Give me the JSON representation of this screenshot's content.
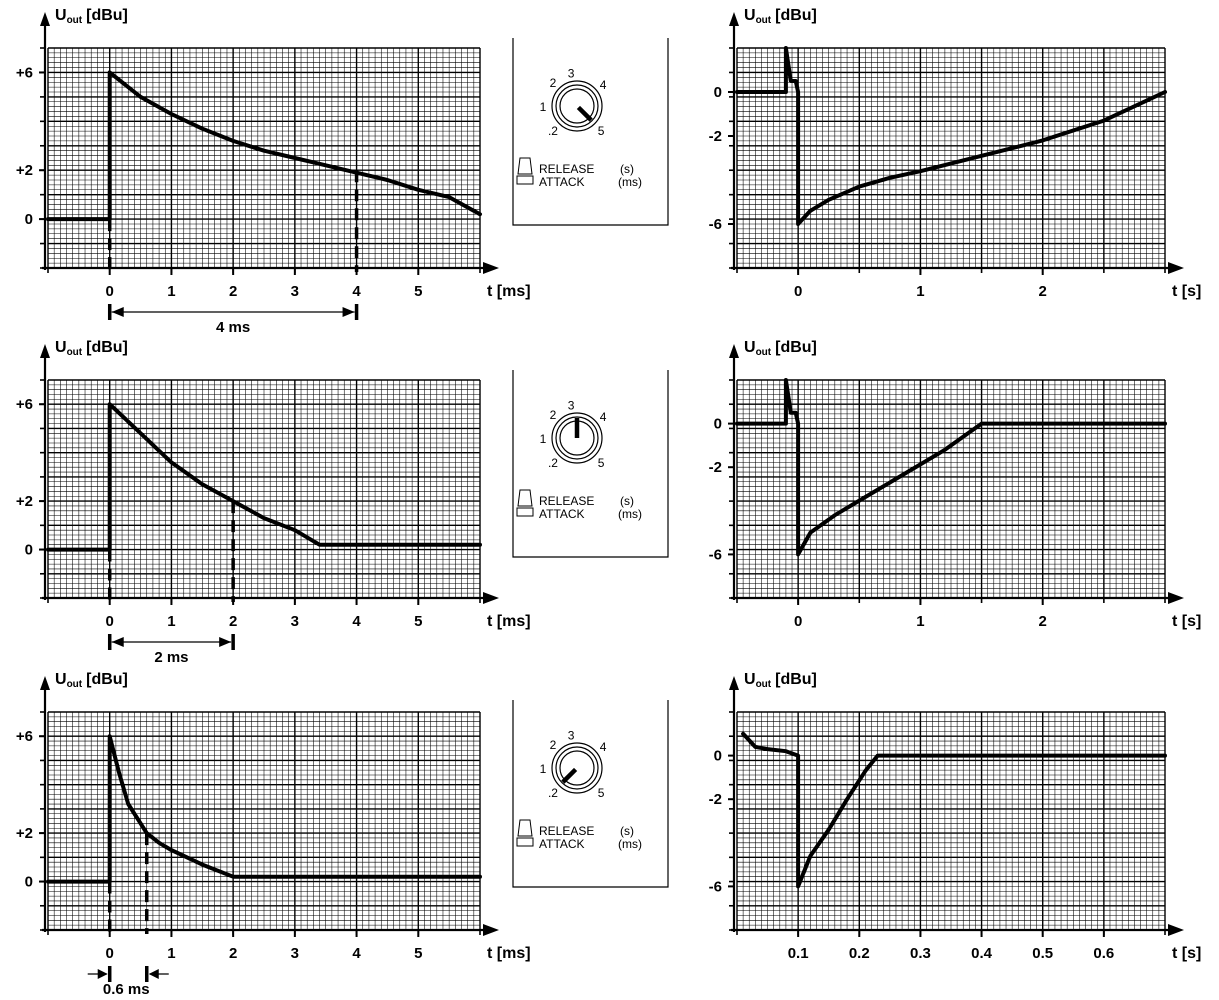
{
  "axis_label_u": "U",
  "axis_label_u_sub": "out",
  "axis_label_u_unit": "[dBu]",
  "knob_labels": {
    "scale": [
      ".2",
      "1",
      "2",
      "3",
      "4",
      "5"
    ],
    "release": "RELEASE",
    "release_unit": "(s)",
    "attack": "ATTACK",
    "attack_unit": "(ms)"
  },
  "colors": {
    "ink": "#000000",
    "grid": "#000000",
    "paper": "#ffffff"
  },
  "chart_data": [
    {
      "type": "line",
      "panel": "left-top",
      "x_unit_label": "t [ms]",
      "xlim": [
        -1,
        6
      ],
      "ylim": [
        -2,
        7
      ],
      "x_ticks": [
        "0",
        "1",
        "2",
        "3",
        "4",
        "5"
      ],
      "y_ticks": [
        "+6",
        "+2",
        "0"
      ],
      "grid": true,
      "series": [
        {
          "x": [
            -1,
            0,
            0,
            0.5,
            1,
            1.5,
            2,
            2.5,
            3,
            3.5,
            4,
            4.5,
            5,
            5.5,
            6
          ],
          "y": [
            0,
            0,
            6,
            5.0,
            4.3,
            3.7,
            3.2,
            2.8,
            2.5,
            2.2,
            1.9,
            1.6,
            1.2,
            0.9,
            0.2
          ]
        }
      ],
      "marker_x": 4,
      "marker_y": 2,
      "annotation": "4 ms"
    },
    {
      "type": "line",
      "panel": "right-top",
      "x_unit_label": "t [s]",
      "xlim": [
        -0.5,
        3
      ],
      "ylim": [
        -8,
        2
      ],
      "x_ticks": [
        "0",
        "1",
        "2"
      ],
      "y_ticks": [
        "0",
        "-2",
        "-6"
      ],
      "grid": true,
      "series": [
        {
          "x": [
            -0.5,
            -0.1,
            -0.1,
            -0.06,
            -0.02,
            0,
            0,
            0.1,
            0.25,
            0.5,
            0.75,
            1,
            1.5,
            2,
            2.5,
            3
          ],
          "y": [
            0,
            0,
            2,
            0.5,
            0.5,
            0,
            -6,
            -5.4,
            -4.9,
            -4.3,
            -3.9,
            -3.6,
            -2.9,
            -2.2,
            -1.3,
            0
          ]
        }
      ]
    },
    {
      "type": "line",
      "panel": "left-middle",
      "x_unit_label": "t [ms]",
      "xlim": [
        -1,
        6
      ],
      "ylim": [
        -2,
        7
      ],
      "x_ticks": [
        "0",
        "1",
        "2",
        "3",
        "4",
        "5"
      ],
      "y_ticks": [
        "+6",
        "+2",
        "0"
      ],
      "grid": true,
      "series": [
        {
          "x": [
            -1,
            0,
            0,
            0.5,
            1,
            1.5,
            2,
            2.5,
            3,
            3.4,
            4,
            5,
            6
          ],
          "y": [
            0,
            0,
            6,
            4.8,
            3.6,
            2.7,
            2.0,
            1.3,
            0.8,
            0.2,
            0.2,
            0.2,
            0.2
          ]
        }
      ],
      "marker_x": 2,
      "marker_y": 2,
      "annotation": "2 ms"
    },
    {
      "type": "line",
      "panel": "right-middle",
      "x_unit_label": "t [s]",
      "xlim": [
        -0.5,
        3
      ],
      "ylim": [
        -8,
        2
      ],
      "x_ticks": [
        "0",
        "1",
        "2"
      ],
      "y_ticks": [
        "0",
        "-2",
        "-6"
      ],
      "grid": true,
      "series": [
        {
          "x": [
            -0.5,
            -0.1,
            -0.1,
            -0.06,
            -0.02,
            0,
            0,
            0.1,
            0.3,
            0.6,
            0.9,
            1.2,
            1.5,
            2,
            2.5,
            3
          ],
          "y": [
            0,
            0,
            2,
            0.5,
            0.5,
            0,
            -6,
            -5.0,
            -4.2,
            -3.2,
            -2.2,
            -1.2,
            0,
            0,
            0,
            0
          ]
        }
      ]
    },
    {
      "type": "line",
      "panel": "left-bottom",
      "x_unit_label": "t [ms]",
      "xlim": [
        -1,
        6
      ],
      "ylim": [
        -2,
        7
      ],
      "x_ticks": [
        "0",
        "1",
        "2",
        "3",
        "4",
        "5"
      ],
      "y_ticks": [
        "+6",
        "+2",
        "0"
      ],
      "grid": true,
      "series": [
        {
          "x": [
            -1,
            0,
            0,
            0.15,
            0.3,
            0.45,
            0.6,
            0.8,
            1,
            1.5,
            2,
            3,
            4,
            5,
            6
          ],
          "y": [
            0,
            0,
            6,
            4.5,
            3.2,
            2.6,
            2.0,
            1.6,
            1.3,
            0.7,
            0.2,
            0.2,
            0.2,
            0.2,
            0.2
          ]
        }
      ],
      "marker_x": 0.6,
      "marker_y": 2,
      "annotation": "0.6 ms"
    },
    {
      "type": "line",
      "panel": "right-bottom",
      "x_unit_label": "t [s]",
      "xlim": [
        0,
        0.7
      ],
      "ylim": [
        -8,
        2
      ],
      "x_ticks": [
        "0.1",
        "0.2",
        "0.3",
        "0.4",
        "0.5",
        "0.6"
      ],
      "x_tick_values": [
        0.1,
        0.2,
        0.3,
        0.4,
        0.5,
        0.6
      ],
      "y_ticks": [
        "0",
        "-2",
        "-6"
      ],
      "grid": true,
      "series": [
        {
          "x": [
            0.01,
            0.03,
            0.05,
            0.08,
            0.1,
            0.1,
            0.12,
            0.15,
            0.18,
            0.21,
            0.23,
            0.3,
            0.4,
            0.5,
            0.6,
            0.7
          ],
          "y": [
            1,
            0.4,
            0.3,
            0.2,
            0,
            -6,
            -4.6,
            -3.4,
            -2.0,
            -0.7,
            0,
            0,
            0,
            0,
            0,
            0
          ]
        }
      ]
    }
  ],
  "knobs": [
    {
      "panel": "knob-top",
      "pointer": "5"
    },
    {
      "panel": "knob-middle",
      "pointer": "3"
    },
    {
      "panel": "knob-bottom",
      "pointer": ".2"
    }
  ]
}
